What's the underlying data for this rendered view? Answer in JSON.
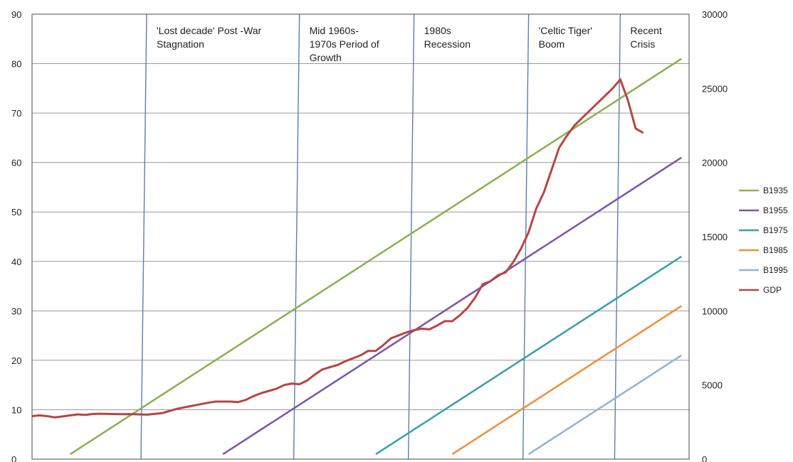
{
  "chart_data": {
    "type": "line",
    "title": "",
    "xlabel": "",
    "ylabel": "",
    "left_axis": {
      "ylim": [
        0,
        90
      ],
      "ticks": [
        "0",
        "10",
        "20",
        "30",
        "40",
        "50",
        "60",
        "70",
        "80",
        "90"
      ]
    },
    "right_axis": {
      "ylim": [
        0,
        30000
      ],
      "ticks": [
        "0",
        "5000",
        "10000",
        "15000",
        "20000",
        "25000",
        "30000"
      ]
    },
    "x_range": [
      1930,
      2016
    ],
    "grid": true,
    "legend_position": "right",
    "periods": [
      {
        "label_lines": [
          "'Lost decade' Post -War",
          "Stagnation"
        ],
        "start": 1945,
        "end": 1965
      },
      {
        "label_lines": [
          "Mid 1960s-",
          "1970s Period of",
          "Growth"
        ],
        "start": 1965,
        "end": 1980
      },
      {
        "label_lines": [
          "1980s",
          "Recession"
        ],
        "start": 1980,
        "end": 1995
      },
      {
        "label_lines": [
          "'Celtic Tiger'",
          "Boom"
        ],
        "start": 1995,
        "end": 2007
      },
      {
        "label_lines": [
          "Recent",
          "Crisis"
        ],
        "start": 2007,
        "end": 2016
      }
    ],
    "series": [
      {
        "name": "B1935",
        "color": "#8db254",
        "axis": "left",
        "points": [
          [
            1935,
            1
          ],
          [
            2015,
            81
          ]
        ]
      },
      {
        "name": "B1955",
        "color": "#7c5aa6",
        "axis": "left",
        "points": [
          [
            1955,
            1
          ],
          [
            2015,
            61
          ]
        ]
      },
      {
        "name": "B1975",
        "color": "#3ea0ae",
        "axis": "left",
        "points": [
          [
            1975,
            1
          ],
          [
            2015,
            41
          ]
        ]
      },
      {
        "name": "B1985",
        "color": "#f0913a",
        "axis": "left",
        "points": [
          [
            1985,
            1
          ],
          [
            2015,
            31
          ]
        ]
      },
      {
        "name": "B1995",
        "color": "#95b3d7",
        "axis": "left",
        "points": [
          [
            1995,
            1
          ],
          [
            2015,
            21
          ]
        ]
      },
      {
        "name": "GDP",
        "color": "#b84543",
        "axis": "right",
        "points": [
          [
            1930,
            2900
          ],
          [
            1931,
            2950
          ],
          [
            1932,
            2900
          ],
          [
            1933,
            2820
          ],
          [
            1934,
            2880
          ],
          [
            1935,
            2950
          ],
          [
            1936,
            3020
          ],
          [
            1937,
            2980
          ],
          [
            1938,
            3050
          ],
          [
            1939,
            3060
          ],
          [
            1940,
            3050
          ],
          [
            1941,
            3040
          ],
          [
            1942,
            3030
          ],
          [
            1943,
            3040
          ],
          [
            1944,
            3020
          ],
          [
            1945,
            3000
          ],
          [
            1946,
            3050
          ],
          [
            1947,
            3100
          ],
          [
            1948,
            3250
          ],
          [
            1949,
            3400
          ],
          [
            1950,
            3500
          ],
          [
            1951,
            3600
          ],
          [
            1952,
            3700
          ],
          [
            1953,
            3800
          ],
          [
            1954,
            3880
          ],
          [
            1955,
            3880
          ],
          [
            1956,
            3880
          ],
          [
            1957,
            3850
          ],
          [
            1958,
            4000
          ],
          [
            1959,
            4250
          ],
          [
            1960,
            4450
          ],
          [
            1961,
            4600
          ],
          [
            1962,
            4750
          ],
          [
            1963,
            5000
          ],
          [
            1964,
            5100
          ],
          [
            1965,
            5050
          ],
          [
            1966,
            5300
          ],
          [
            1967,
            5700
          ],
          [
            1968,
            6050
          ],
          [
            1969,
            6200
          ],
          [
            1970,
            6350
          ],
          [
            1971,
            6600
          ],
          [
            1972,
            6800
          ],
          [
            1973,
            7000
          ],
          [
            1974,
            7300
          ],
          [
            1975,
            7300
          ],
          [
            1976,
            7700
          ],
          [
            1977,
            8150
          ],
          [
            1978,
            8350
          ],
          [
            1979,
            8550
          ],
          [
            1980,
            8700
          ],
          [
            1981,
            8800
          ],
          [
            1982,
            8750
          ],
          [
            1983,
            9000
          ],
          [
            1984,
            9300
          ],
          [
            1985,
            9300
          ],
          [
            1986,
            9700
          ],
          [
            1987,
            10200
          ],
          [
            1988,
            10900
          ],
          [
            1989,
            11800
          ],
          [
            1990,
            12000
          ],
          [
            1991,
            12400
          ],
          [
            1992,
            12600
          ],
          [
            1993,
            13300
          ],
          [
            1994,
            14200
          ],
          [
            1995,
            15300
          ],
          [
            1996,
            16900
          ],
          [
            1997,
            18000
          ],
          [
            1998,
            19500
          ],
          [
            1999,
            21000
          ],
          [
            2000,
            21800
          ],
          [
            2001,
            22500
          ],
          [
            2002,
            23000
          ],
          [
            2003,
            23500
          ],
          [
            2004,
            24000
          ],
          [
            2005,
            24500
          ],
          [
            2006,
            25000
          ],
          [
            2007,
            25600
          ],
          [
            2008,
            24200
          ],
          [
            2009,
            22300
          ],
          [
            2010,
            22000
          ]
        ]
      }
    ]
  }
}
